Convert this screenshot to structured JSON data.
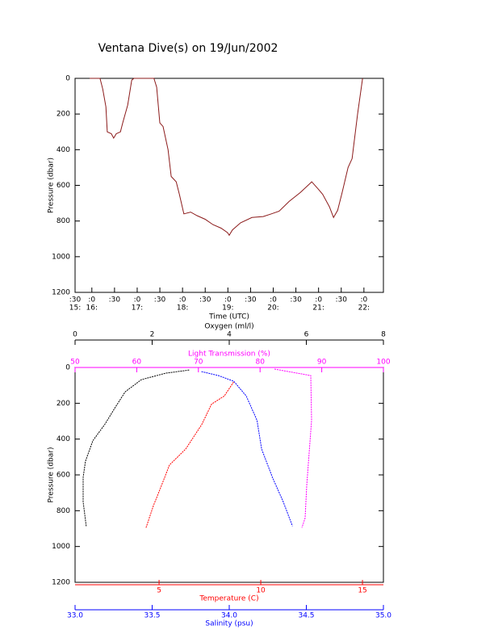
{
  "chart_data": [
    {
      "type": "line",
      "title": "Ventana Dive(s) on 19/Jun/2002",
      "xlabel": "Time (UTC)",
      "ylabel": "Pressure (dbar)",
      "color": "#8b1a1a",
      "xlim": [
        15.63,
        22.43
      ],
      "ylim": [
        1200,
        0
      ],
      "xticks": [
        {
          "value": 15.63,
          "label": ":30"
        },
        {
          "value": 16,
          "label": ":0"
        },
        {
          "value": 16.5,
          "label": ":30"
        },
        {
          "value": 17,
          "label": ":0"
        },
        {
          "value": 17.5,
          "label": ":30"
        },
        {
          "value": 18,
          "label": ":0"
        },
        {
          "value": 18.5,
          "label": ":30"
        },
        {
          "value": 19,
          "label": ":0"
        },
        {
          "value": 19.5,
          "label": ":30"
        },
        {
          "value": 20,
          "label": ":0"
        },
        {
          "value": 20.5,
          "label": ":30"
        },
        {
          "value": 21,
          "label": ":0"
        },
        {
          "value": 21.5,
          "label": ":30"
        },
        {
          "value": 22,
          "label": ":0"
        }
      ],
      "xticks_hours": [
        {
          "value": 15.63,
          "label": "15:"
        },
        {
          "value": 16,
          "label": "16:"
        },
        {
          "value": 17,
          "label": "17:"
        },
        {
          "value": 18,
          "label": "18:"
        },
        {
          "value": 19,
          "label": "19:"
        },
        {
          "value": 20,
          "label": "20:"
        },
        {
          "value": 21,
          "label": "21:"
        },
        {
          "value": 22,
          "label": "22:"
        }
      ],
      "yticks": [
        0,
        200,
        400,
        600,
        800,
        1000,
        1200
      ],
      "x": [
        15.95,
        16.18,
        16.24,
        16.31,
        16.34,
        16.43,
        16.48,
        16.54,
        16.63,
        16.68,
        16.79,
        16.88,
        16.93,
        17.37,
        17.43,
        17.5,
        17.57,
        17.68,
        17.75,
        17.86,
        17.93,
        18.03,
        18.18,
        18.32,
        18.5,
        18.67,
        18.85,
        18.99,
        19.03,
        19.1,
        19.28,
        19.53,
        19.78,
        19.96,
        20.13,
        20.35,
        20.6,
        20.85,
        20.99,
        21.09,
        21.24,
        21.33,
        21.42,
        21.52,
        21.65,
        21.74,
        21.86,
        21.97
      ],
      "values": [
        0,
        0,
        60,
        160,
        300,
        310,
        335,
        310,
        300,
        250,
        150,
        10,
        0,
        0,
        50,
        250,
        270,
        400,
        550,
        580,
        650,
        760,
        750,
        770,
        790,
        820,
        840,
        865,
        880,
        850,
        810,
        780,
        775,
        760,
        745,
        690,
        640,
        580,
        620,
        650,
        720,
        780,
        740,
        640,
        500,
        450,
        200,
        0
      ]
    },
    {
      "type": "profiles",
      "ylabel": "Pressure (dbar)",
      "ylim": [
        1200,
        0
      ],
      "yticks": [
        0,
        200,
        400,
        600,
        800,
        1000,
        1200
      ],
      "x_axes": [
        {
          "label": "Oxygen (ml/l)",
          "xlim": [
            0,
            8
          ],
          "xticks": [
            0,
            2,
            4,
            6,
            8
          ],
          "color": "#000000"
        },
        {
          "label": "Light Transmission (%)",
          "xlim": [
            50,
            100
          ],
          "xticks": [
            50,
            60,
            70,
            80,
            90,
            100
          ],
          "color": "#ff00ff"
        },
        {
          "label": "Temperature (C)",
          "xlim": [
            0.87,
            16.03
          ],
          "xticks": [
            5,
            10,
            15
          ],
          "color": "#ff0000"
        },
        {
          "label": "Salinity (psu)",
          "xlim": [
            33,
            35
          ],
          "xticks": [
            {
              "value": 33,
              "label": "33.0"
            },
            {
              "value": 33.5,
              "label": "33.5"
            },
            {
              "value": 34,
              "label": "34.0"
            },
            {
              "value": 34.5,
              "label": "34.5"
            },
            {
              "value": 35,
              "label": "35.0"
            }
          ],
          "color": "#0000ff"
        }
      ],
      "series": [
        {
          "x_axis": 0,
          "color": "#000000",
          "x": [
            0.29,
            0.21,
            0.21,
            0.27,
            0.46,
            0.77,
            1.03,
            1.3,
            1.72,
            2.35,
            2.97
          ],
          "values": [
            886,
            750,
            614,
            523,
            409,
            318,
            227,
            136,
            68,
            32,
            14
          ]
        },
        {
          "x_axis": 2,
          "color": "#ff0000",
          "x": [
            4.36,
            4.72,
            5.12,
            5.51,
            6.31,
            7.1,
            7.58,
            8.21,
            8.69
          ],
          "values": [
            895,
            773,
            659,
            545,
            455,
            318,
            205,
            159,
            77
          ]
        },
        {
          "x_axis": 3,
          "color": "#0000ff",
          "x": [
            33.82,
            33.93,
            34.03,
            34.11,
            34.18,
            34.21,
            34.28,
            34.35,
            34.41
          ],
          "values": [
            23,
            45,
            77,
            159,
            295,
            455,
            614,
            750,
            886
          ]
        },
        {
          "x_axis": 1,
          "color": "#ff00ff",
          "x": [
            82.33,
            88.22,
            88.35,
            87.96,
            87.57,
            87.3,
            86.78
          ],
          "values": [
            9,
            45,
            295,
            477,
            659,
            841,
            895
          ]
        }
      ]
    }
  ]
}
